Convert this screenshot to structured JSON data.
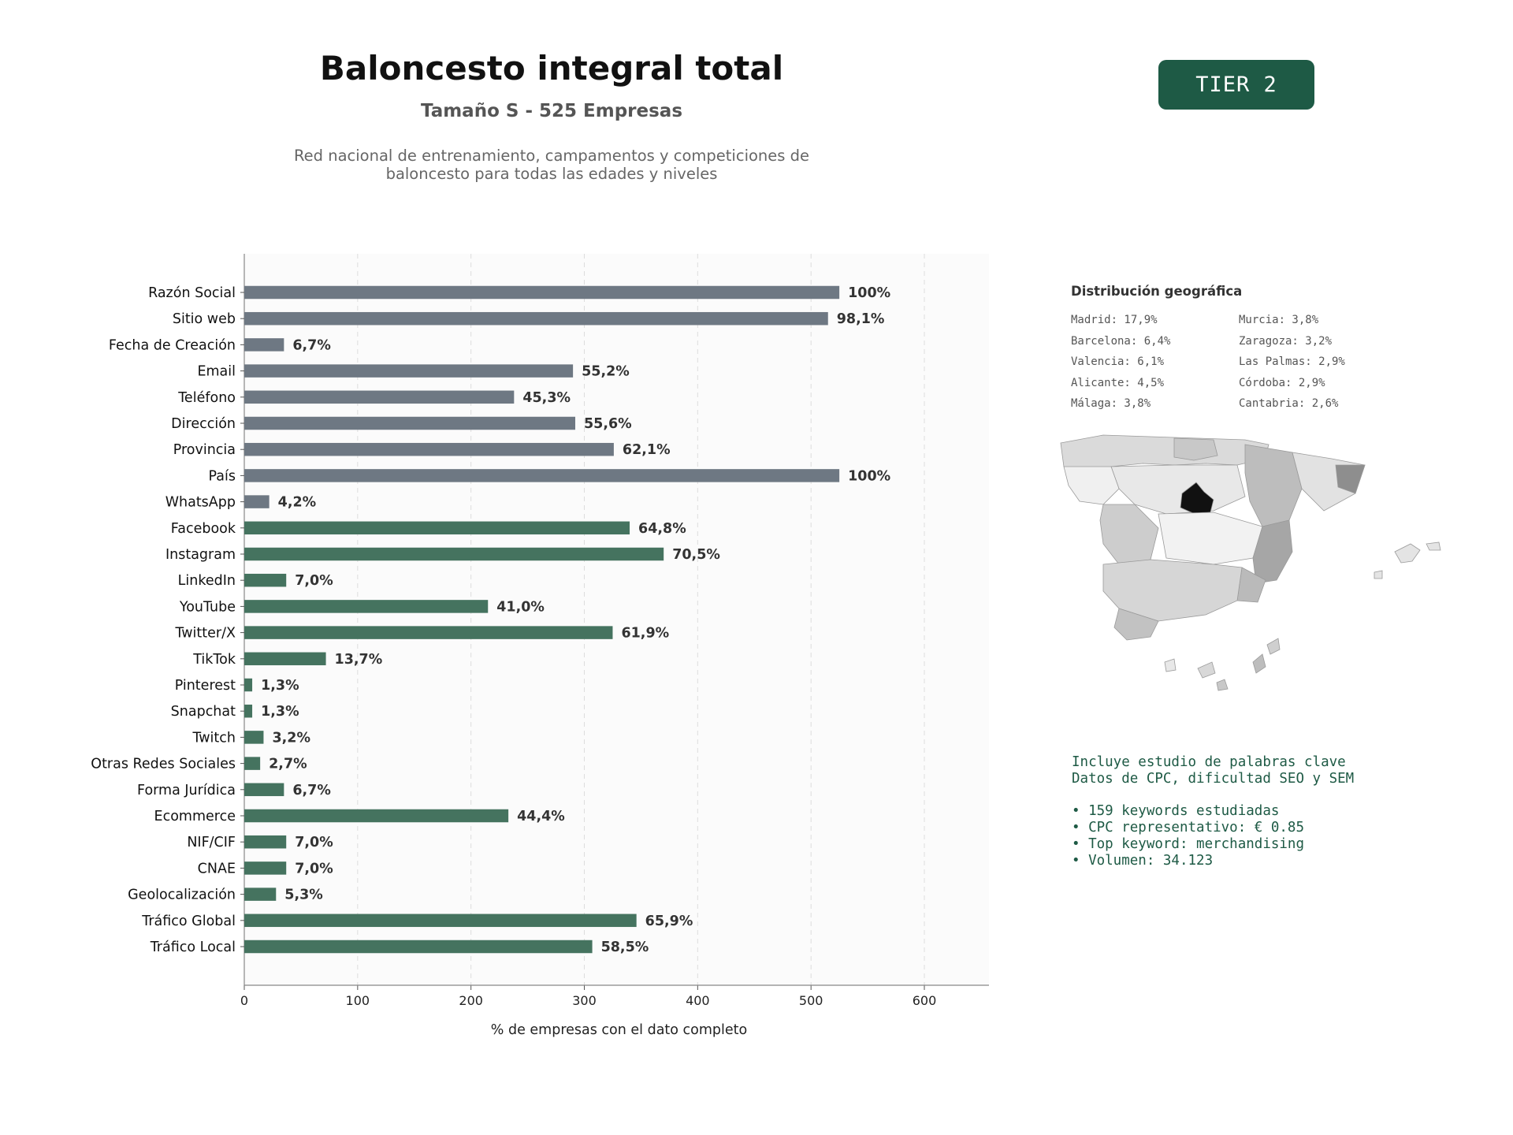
{
  "header": {
    "title": "Baloncesto integral total",
    "subtitle": "Tamaño S - 525 Empresas",
    "description": "Red nacional de entrenamiento, campamentos y competiciones de\nbaloncesto para todas las edades y niveles",
    "badge": "TIER 2"
  },
  "chart_data": {
    "type": "bar",
    "orientation": "horizontal",
    "categories": [
      "Razón Social",
      "Sitio web",
      "Fecha de Creación",
      "Email",
      "Teléfono",
      "Dirección",
      "Provincia",
      "País",
      "WhatsApp",
      "Facebook",
      "Instagram",
      "LinkedIn",
      "YouTube",
      "Twitter/X",
      "TikTok",
      "Pinterest",
      "Snapchat",
      "Twitch",
      "Otras Redes Sociales",
      "Forma Jurídica",
      "Ecommerce",
      "NIF/CIF",
      "CNAE",
      "Geolocalización",
      "Tráfico Global",
      "Tráfico Local"
    ],
    "values": [
      525,
      515,
      35,
      290,
      238,
      292,
      326,
      525,
      22,
      340,
      370,
      37,
      215,
      325,
      72,
      7,
      7,
      17,
      14,
      35,
      233,
      37,
      37,
      28,
      346,
      307
    ],
    "labels": [
      "100%",
      "98,1%",
      "6,7%",
      "55,2%",
      "45,3%",
      "55,6%",
      "62,1%",
      "100%",
      "4,2%",
      "64,8%",
      "70,5%",
      "7,0%",
      "41,0%",
      "61,9%",
      "13,7%",
      "1,3%",
      "1,3%",
      "3,2%",
      "2,7%",
      "6,7%",
      "44,4%",
      "7,0%",
      "7,0%",
      "5,3%",
      "65,9%",
      "58,5%"
    ],
    "groups": [
      "basic",
      "basic",
      "basic",
      "basic",
      "basic",
      "basic",
      "basic",
      "basic",
      "basic",
      "social",
      "social",
      "social",
      "social",
      "social",
      "social",
      "social",
      "social",
      "social",
      "social",
      "other",
      "other",
      "other",
      "other",
      "other",
      "other",
      "other"
    ],
    "group_colors": {
      "basic": "#6e7883",
      "social": "#45735f",
      "other": "#45735f"
    },
    "xlabel": "% de empresas con el dato completo",
    "ylabel": "",
    "xlim": [
      0,
      657
    ],
    "xticks": [
      0,
      100,
      200,
      300,
      400,
      500,
      600
    ],
    "grid": "vertical dashed"
  },
  "geo": {
    "title": "Distribución geográfica",
    "items": [
      "Madrid: 17,9%",
      "Murcia: 3,8%",
      "Barcelona: 6,4%",
      "Zaragoza: 3,2%",
      "Valencia: 6,1%",
      "Las Palmas: 2,9%",
      "Alicante: 4,5%",
      "Córdoba: 2,9%",
      "Málaga: 3,8%",
      "Cantabria: 2,6%"
    ]
  },
  "keywords": {
    "line1": "Incluye estudio de palabras clave",
    "line2": "Datos de CPC, dificultad SEO y SEM",
    "bullet1": "• 159 keywords estudiadas",
    "bullet2": "• CPC representativo: € 0.85",
    "bullet3": "• Top keyword: merchandising",
    "bullet4": "• Volumen: 34.123"
  }
}
